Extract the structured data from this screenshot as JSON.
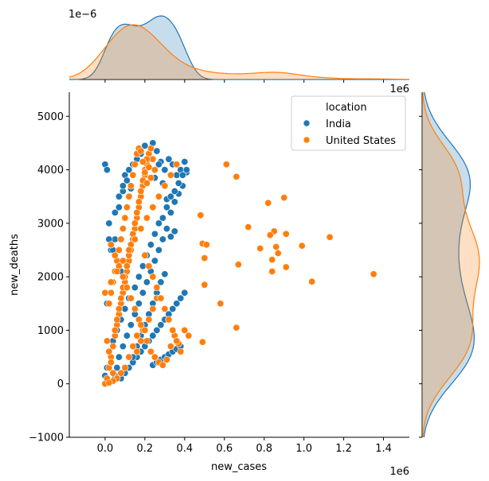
{
  "chart_data": {
    "type": "scatter",
    "xlabel": "new_cases",
    "ylabel": "new_deaths",
    "x_offset_text": "1e6",
    "top_marginal_offset_text": "1e−6",
    "top_marginal_right_offset_text": "1e6",
    "xlim": [
      -0.18,
      1.53
    ],
    "ylim": [
      -1000,
      5450
    ],
    "x_ticks": [
      0.0,
      0.2,
      0.4,
      0.6,
      0.8,
      1.0,
      1.2,
      1.4
    ],
    "x_tick_labels": [
      "0.0",
      "0.2",
      "0.4",
      "0.6",
      "0.8",
      "1.0",
      "1.2",
      "1.4"
    ],
    "y_ticks": [
      -1000,
      0,
      1000,
      2000,
      3000,
      4000,
      5000
    ],
    "y_tick_labels": [
      "−1000",
      "0",
      "1000",
      "2000",
      "3000",
      "4000",
      "5000"
    ],
    "grid": false,
    "legend": {
      "title": "location",
      "placement": "top-right",
      "entries": [
        "India",
        "United States"
      ]
    },
    "marginals": {
      "top": "kde of new_cases per location",
      "right": "kde of new_deaths per location"
    },
    "series": [
      {
        "name": "India",
        "color": "#1f77b4",
        "x": [
          0.0,
          0.01,
          0.01,
          0.02,
          0.03,
          0.05,
          0.07,
          0.09,
          0.1,
          0.12,
          0.14,
          0.16,
          0.18,
          0.2,
          0.22,
          0.24,
          0.26,
          0.28,
          0.3,
          0.32,
          0.34,
          0.36,
          0.38,
          0.4,
          0.41,
          0.39,
          0.37,
          0.35,
          0.33,
          0.31,
          0.29,
          0.27,
          0.25,
          0.23,
          0.21,
          0.19,
          0.17,
          0.15,
          0.13,
          0.11,
          0.09,
          0.07,
          0.06,
          0.04,
          0.05,
          0.08,
          0.1,
          0.12,
          0.14,
          0.16,
          0.18,
          0.2,
          0.22,
          0.24,
          0.26,
          0.28,
          0.3,
          0.32,
          0.34,
          0.36,
          0.38,
          0.4,
          0.25,
          0.27,
          0.29,
          0.31,
          0.33,
          0.35,
          0.24,
          0.26,
          0.28,
          0.3,
          0.32,
          0.34,
          0.36,
          0.38,
          0.02,
          0.04,
          0.06,
          0.08,
          0.01,
          0.03,
          0.1,
          0.12,
          0.15,
          0.17,
          0.19,
          0.21,
          0.23,
          0.25,
          0.27,
          0.29,
          0.31,
          0.33,
          0.35,
          0.37,
          0.39,
          0.41,
          0.3,
          0.28,
          0.26,
          0.24,
          0.22,
          0.2,
          0.18,
          0.16,
          0.14,
          0.12,
          0.08,
          0.06,
          0.04,
          0.02,
          0.0,
          0.05,
          0.07,
          0.09,
          0.11,
          0.13
        ],
        "y": [
          4100,
          4000,
          1500,
          3000,
          2500,
          2700,
          3300,
          3600,
          3900,
          4000,
          4100,
          4200,
          4300,
          4450,
          4200,
          4500,
          4350,
          4150,
          4000,
          4200,
          4100,
          3900,
          4000,
          4150,
          3950,
          3700,
          3550,
          3400,
          3200,
          2900,
          2700,
          2500,
          2300,
          2100,
          1900,
          1700,
          1500,
          1300,
          1100,
          900,
          700,
          500,
          300,
          200,
          150,
          100,
          200,
          300,
          400,
          500,
          600,
          700,
          800,
          900,
          1000,
          1100,
          1200,
          1300,
          1400,
          1500,
          1600,
          1700,
          3850,
          4100,
          3750,
          3300,
          2750,
          2850,
          350,
          400,
          450,
          500,
          550,
          600,
          650,
          700,
          600,
          800,
          1000,
          1200,
          300,
          500,
          1400,
          1600,
          1800,
          2000,
          2200,
          2400,
          2600,
          2800,
          3000,
          3100,
          3450,
          3500,
          3600,
          3750,
          3900,
          4000,
          2050,
          1900,
          1700,
          1500,
          1300,
          1100,
          900,
          700,
          500,
          300,
          2100,
          2300,
          2500,
          2700,
          150,
          3200,
          3500,
          3700,
          3800,
          3650
        ]
      },
      {
        "name": "United States",
        "color": "#ff7f0e",
        "x": [
          0.0,
          0.01,
          0.02,
          0.03,
          0.04,
          0.05,
          0.06,
          0.07,
          0.08,
          0.09,
          0.1,
          0.11,
          0.12,
          0.13,
          0.14,
          0.15,
          0.16,
          0.17,
          0.18,
          0.19,
          0.2,
          0.21,
          0.22,
          0.23,
          0.24,
          0.25,
          0.01,
          0.02,
          0.03,
          0.04,
          0.05,
          0.06,
          0.07,
          0.08,
          0.09,
          0.1,
          0.11,
          0.12,
          0.13,
          0.14,
          0.15,
          0.16,
          0.17,
          0.18,
          0.19,
          0.2,
          0.21,
          0.22,
          0.23,
          0.02,
          0.03,
          0.04,
          0.05,
          0.06,
          0.07,
          0.08,
          0.09,
          0.1,
          0.11,
          0.12,
          0.13,
          0.14,
          0.15,
          0.16,
          0.17,
          0.18,
          0.19,
          0.2,
          0.21,
          0.03,
          0.05,
          0.07,
          0.09,
          0.11,
          0.13,
          0.15,
          0.17,
          0.19,
          0.21,
          0.23,
          0.25,
          0.27,
          0.29,
          0.31,
          0.33,
          0.35,
          0.37,
          0.4,
          0.42,
          0.48,
          0.49,
          0.5,
          0.5,
          0.49,
          0.51,
          0.58,
          0.61,
          0.66,
          0.67,
          0.66,
          0.72,
          0.78,
          0.82,
          0.84,
          0.85,
          0.86,
          0.87,
          0.83,
          0.84,
          0.9,
          0.91,
          0.91,
          0.99,
          1.04,
          1.13,
          1.35,
          0.16,
          0.18,
          0.2,
          0.22,
          0.24,
          0.26,
          0.12,
          0.14,
          0.16,
          0.18,
          0.1,
          0.08,
          0.06,
          0.04,
          0.02,
          0.0,
          0.03,
          0.06,
          0.09,
          0.12,
          0.15,
          0.18,
          0.21,
          0.24,
          0.27,
          0.3,
          0.33,
          0.36,
          0.2,
          0.22,
          0.24,
          0.26,
          0.28,
          0.3,
          0.32,
          0.34,
          0.36,
          0.38
        ],
        "y": [
          0,
          100,
          300,
          500,
          700,
          900,
          1100,
          1300,
          1500,
          1700,
          1900,
          2100,
          2300,
          2500,
          2700,
          2900,
          3100,
          3300,
          3500,
          3700,
          3900,
          4100,
          4300,
          4400,
          4200,
          4000,
          800,
          600,
          400,
          200,
          1000,
          1200,
          1400,
          1600,
          1800,
          2000,
          2200,
          2400,
          2600,
          2800,
          3000,
          3200,
          3400,
          3600,
          3800,
          4000,
          4200,
          4050,
          3850,
          1500,
          1700,
          1900,
          2100,
          2300,
          2500,
          2700,
          2900,
          3100,
          3300,
          3500,
          3700,
          3900,
          4100,
          4300,
          4400,
          4350,
          4150,
          3950,
          3750,
          2600,
          2400,
          2200,
          2000,
          1800,
          1600,
          1400,
          1200,
          1000,
          800,
          600,
          500,
          400,
          350,
          450,
          700,
          900,
          750,
          1000,
          900,
          3150,
          2620,
          2350,
          1850,
          780,
          2600,
          1500,
          4100,
          1050,
          2230,
          3870,
          2930,
          2530,
          3380,
          2320,
          2850,
          2560,
          2440,
          2780,
          2100,
          3480,
          2180,
          2800,
          2580,
          1910,
          2740,
          2050,
          600,
          800,
          1000,
          1200,
          1400,
          1600,
          500,
          700,
          900,
          1100,
          300,
          200,
          100,
          50,
          20,
          1700,
          1900,
          2100,
          2300,
          2500,
          2700,
          2900,
          3100,
          3300,
          3500,
          3700,
          3900,
          4100,
          2400,
          2200,
          2000,
          1800,
          1600,
          1400,
          1200,
          1000,
          800,
          600
        ]
      }
    ]
  }
}
